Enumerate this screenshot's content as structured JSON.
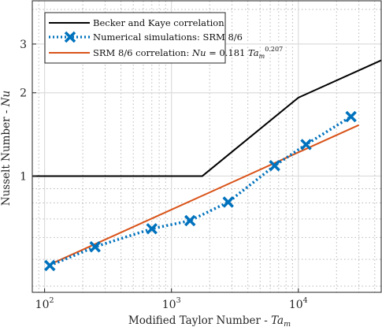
{
  "chart_data": {
    "type": "line",
    "xlabel": "Modified Taylor Number - Ta_m",
    "xlabel_main": "Modified Taylor Number - ",
    "xlabel_sym": "Ta",
    "xlabel_sub": "m",
    "ylabel": "Nusselt Number - Nu",
    "ylabel_main": "Nusselt Number - ",
    "ylabel_sym": "Nu",
    "x_scale": "log",
    "y_scale": "log",
    "xlim": [
      80,
      45000
    ],
    "ylim": [
      0.38,
      4.3
    ],
    "grid": true,
    "x_ticks": [
      {
        "value": 100,
        "base": "10",
        "exp": "2"
      },
      {
        "value": 1000,
        "base": "10",
        "exp": "3"
      },
      {
        "value": 10000,
        "base": "10",
        "exp": "4"
      }
    ],
    "y_ticks": [
      {
        "value": 1,
        "label": "1"
      },
      {
        "value": 2,
        "label": "2"
      },
      {
        "value": 3,
        "label": "3"
      }
    ],
    "legend_position": "top-left",
    "series": [
      {
        "name": "Becker and Kaye correlation",
        "color": "#000000",
        "style": "solid",
        "x": [
          80,
          1750,
          10000,
          45000
        ],
        "y": [
          1.0,
          1.0,
          1.92,
          2.62
        ]
      },
      {
        "name": "Numerical simulations: SRM 8/6",
        "color": "#0072BD",
        "style": "dotted-with-x-markers",
        "x": [
          110,
          250,
          700,
          1400,
          2800,
          6500,
          11500,
          26000
        ],
        "y": [
          0.475,
          0.555,
          0.645,
          0.69,
          0.805,
          1.09,
          1.3,
          1.64
        ]
      },
      {
        "name": "SRM 8/6 correlation: Nu = 0.181 Ta_m^0.207",
        "name_prefix": "SRM 8/6 correlation: ",
        "name_sym": "Nu",
        "name_mid": " = 0.181 ",
        "name_sym2": "Ta",
        "name_sub": "m",
        "name_sup": "0.207",
        "color": "#D95319",
        "style": "solid",
        "coefficient": 0.181,
        "exponent": 0.207,
        "x_range": [
          110,
          30000
        ]
      }
    ]
  }
}
